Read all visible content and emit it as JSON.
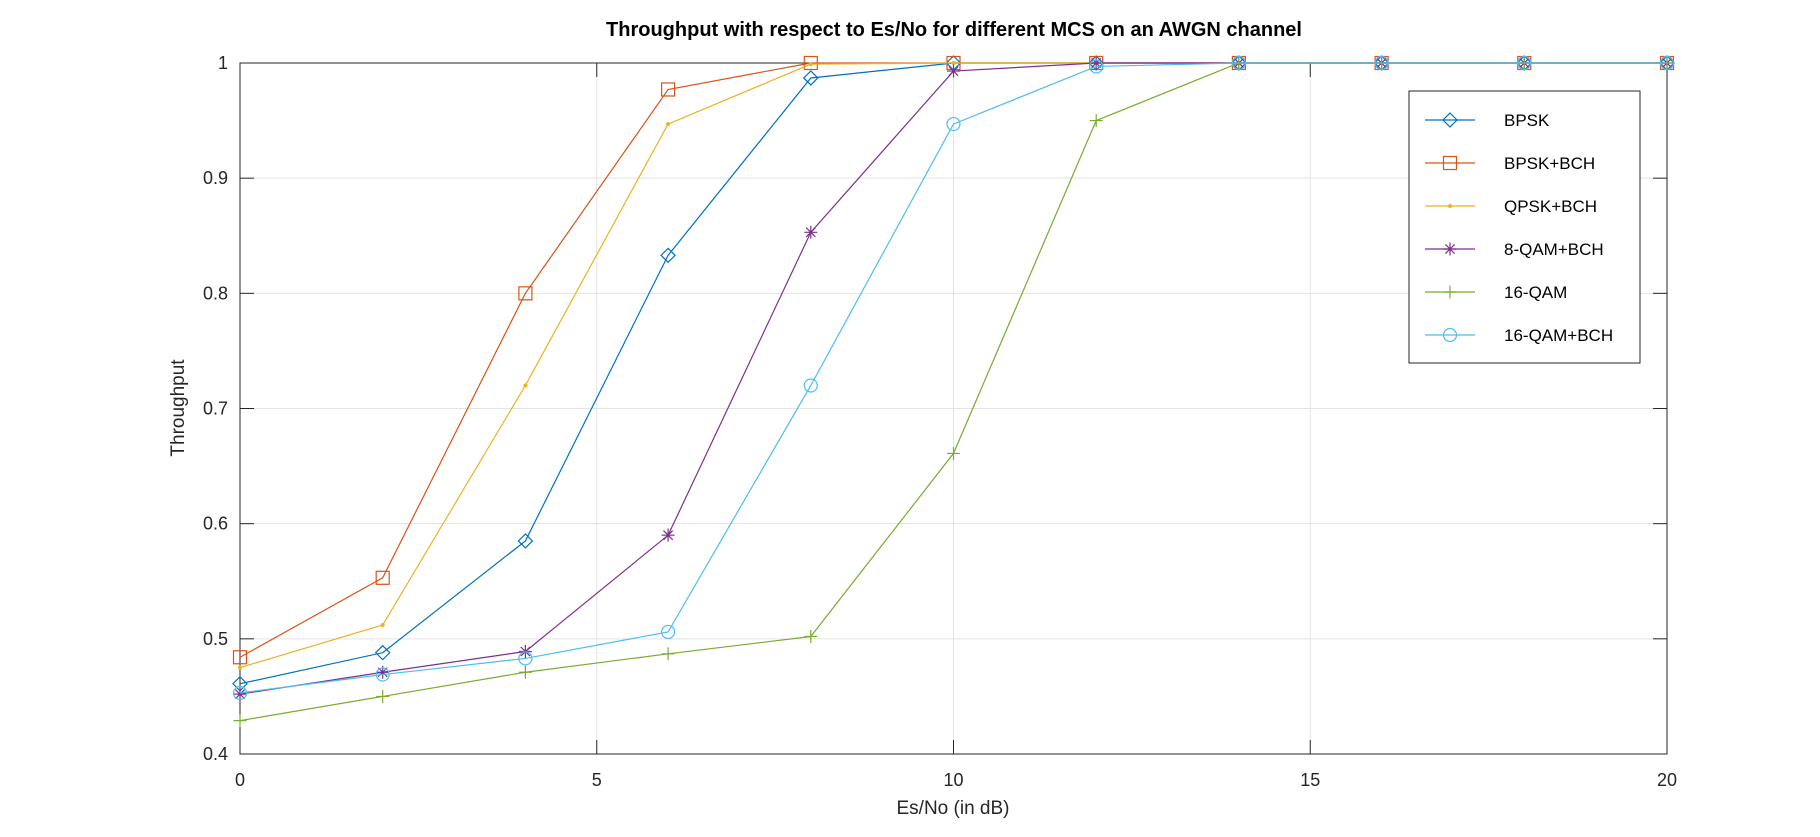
{
  "chart_data": {
    "type": "line",
    "title": "Throughput with respect to Es/No for different MCS on an AWGN channel",
    "xlabel": "Es/No (in dB)",
    "ylabel": "Throughput",
    "xlim": [
      0,
      20
    ],
    "ylim": [
      0.4,
      1
    ],
    "xticks": [
      0,
      5,
      10,
      15,
      20
    ],
    "yticks": [
      0.4,
      0.5,
      0.6,
      0.7,
      0.8,
      0.9,
      1
    ],
    "xtick_labels": [
      "0",
      "5",
      "10",
      "15",
      "20"
    ],
    "ytick_labels": [
      "0.4",
      "0.5",
      "0.6",
      "0.7",
      "0.8",
      "0.9",
      "1"
    ],
    "grid": true,
    "legend_position": "top-right",
    "x": [
      0,
      2,
      4,
      6,
      8,
      10,
      12,
      14,
      16,
      18,
      20
    ],
    "series": [
      {
        "name": "BPSK",
        "color": "#0072BD",
        "marker": "diamond",
        "values": [
          0.461,
          0.488,
          0.585,
          0.833,
          0.987,
          1,
          1,
          1,
          1,
          1,
          1
        ]
      },
      {
        "name": "BPSK+BCH",
        "color": "#D95319",
        "marker": "square",
        "values": [
          0.484,
          0.553,
          0.8,
          0.977,
          1,
          1,
          1,
          1,
          1,
          1,
          1
        ]
      },
      {
        "name": "QPSK+BCH",
        "color": "#EDB120",
        "marker": "point",
        "values": [
          0.475,
          0.512,
          0.72,
          0.947,
          0.999,
          1,
          1,
          1,
          1,
          1,
          1
        ]
      },
      {
        "name": "8-QAM+BCH",
        "color": "#7E2F8E",
        "marker": "asterisk",
        "values": [
          0.452,
          0.471,
          0.489,
          0.59,
          0.853,
          0.993,
          1,
          1,
          1,
          1,
          1
        ]
      },
      {
        "name": "16-QAM",
        "color": "#77AC30",
        "marker": "plus",
        "values": [
          0.429,
          0.45,
          0.471,
          0.487,
          0.502,
          0.661,
          0.95,
          1,
          1,
          1,
          1
        ]
      },
      {
        "name": "16-QAM+BCH",
        "color": "#4DBEEE",
        "marker": "circle",
        "values": [
          0.453,
          0.469,
          0.483,
          0.506,
          0.72,
          0.947,
          0.997,
          1,
          1,
          1,
          1
        ]
      }
    ]
  }
}
